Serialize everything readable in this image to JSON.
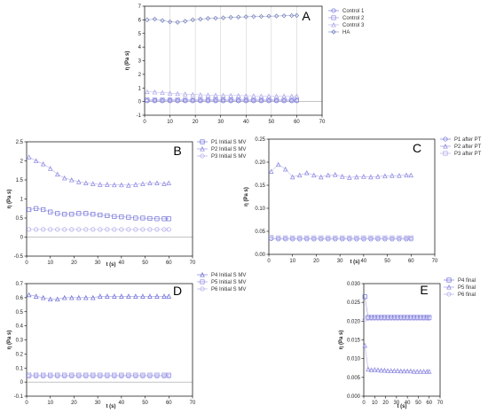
{
  "colors": {
    "series": [
      "#6a6ad6",
      "#8a86e0",
      "#a8a4e8",
      "#6f7bb8"
    ],
    "frame": "#000000",
    "grid": "#c8c8c8",
    "zero_line": "#888888"
  },
  "chart_data": [
    {
      "panel": "A",
      "type": "scatter",
      "grid": true,
      "legend": "top-right",
      "xlabel": "",
      "ylabel": "η (Pa s)",
      "xlim": [
        0,
        70
      ],
      "ylim": [
        -1,
        7
      ],
      "xticks": [
        0,
        10,
        20,
        30,
        40,
        50,
        60,
        70
      ],
      "yticks": [
        -1,
        0,
        1,
        2,
        3,
        4,
        5,
        6,
        7
      ],
      "x": [
        1,
        4,
        7,
        10,
        13,
        16,
        19,
        22,
        25,
        28,
        31,
        34,
        37,
        40,
        43,
        46,
        49,
        52,
        55,
        58,
        60
      ],
      "series": [
        {
          "name": "Control 1",
          "marker": "circle",
          "values": [
            0.05,
            0.05,
            0.05,
            0.05,
            0.05,
            0.05,
            0.05,
            0.05,
            0.05,
            0.05,
            0.05,
            0.05,
            0.05,
            0.05,
            0.05,
            0.05,
            0.05,
            0.05,
            0.05,
            0.05,
            0.05
          ]
        },
        {
          "name": "Control 2",
          "marker": "square",
          "values": [
            0.12,
            0.12,
            0.12,
            0.12,
            0.12,
            0.12,
            0.12,
            0.12,
            0.12,
            0.12,
            0.12,
            0.12,
            0.12,
            0.12,
            0.12,
            0.12,
            0.12,
            0.12,
            0.12,
            0.12,
            0.12
          ]
        },
        {
          "name": "Control 3",
          "marker": "triangle",
          "values": [
            0.72,
            0.7,
            0.66,
            0.62,
            0.58,
            0.55,
            0.52,
            0.5,
            0.48,
            0.47,
            0.46,
            0.45,
            0.44,
            0.43,
            0.42,
            0.41,
            0.41,
            0.4,
            0.4,
            0.4,
            0.4
          ]
        },
        {
          "name": "HA",
          "marker": "diamond",
          "values": [
            6.0,
            6.05,
            5.95,
            5.85,
            5.82,
            5.9,
            6.0,
            6.05,
            6.1,
            6.12,
            6.15,
            6.18,
            6.2,
            6.22,
            6.24,
            6.25,
            6.27,
            6.28,
            6.3,
            6.31,
            6.32
          ]
        }
      ]
    },
    {
      "panel": "B",
      "type": "scatter",
      "grid": false,
      "legend": "top-right",
      "xlabel": "t (s)",
      "ylabel": "η (Pa s)",
      "xlim": [
        0,
        70
      ],
      "ylim": [
        -0.5,
        2.5
      ],
      "xticks": [
        0,
        10,
        20,
        30,
        40,
        50,
        60,
        70
      ],
      "yticks": [
        -0.5,
        0.0,
        0.5,
        1.0,
        1.5,
        2.0,
        2.5
      ],
      "x": [
        1,
        4,
        7,
        10,
        13,
        16,
        19,
        22,
        25,
        28,
        31,
        34,
        37,
        40,
        43,
        46,
        49,
        52,
        55,
        58,
        60
      ],
      "series": [
        {
          "name": "P1 Initial S MV",
          "marker": "square",
          "values": [
            0.72,
            0.75,
            0.72,
            0.66,
            0.62,
            0.6,
            0.6,
            0.62,
            0.62,
            0.6,
            0.58,
            0.56,
            0.54,
            0.53,
            0.52,
            0.5,
            0.5,
            0.49,
            0.48,
            0.48,
            0.48
          ]
        },
        {
          "name": "P2 Initial S MV",
          "marker": "triangle",
          "values": [
            2.1,
            2.0,
            1.92,
            1.8,
            1.65,
            1.55,
            1.5,
            1.45,
            1.42,
            1.4,
            1.38,
            1.38,
            1.37,
            1.37,
            1.36,
            1.38,
            1.4,
            1.42,
            1.42,
            1.4,
            1.42
          ]
        },
        {
          "name": "P3 Initial S MV",
          "marker": "circle",
          "values": [
            0.2,
            0.2,
            0.2,
            0.2,
            0.2,
            0.2,
            0.2,
            0.2,
            0.2,
            0.2,
            0.2,
            0.2,
            0.2,
            0.2,
            0.2,
            0.2,
            0.2,
            0.2,
            0.2,
            0.2,
            0.2
          ]
        }
      ]
    },
    {
      "panel": "C",
      "type": "scatter",
      "grid": false,
      "legend": "top-right",
      "xlabel": "t (s)",
      "ylabel": "η (Pa s)",
      "xlim": [
        0,
        70
      ],
      "ylim": [
        0,
        0.25
      ],
      "xticks": [
        0,
        10,
        20,
        30,
        40,
        50,
        60,
        70
      ],
      "yticks": [
        0.0,
        0.05,
        0.1,
        0.15,
        0.2,
        0.25
      ],
      "ytick_labels": [
        "0.00",
        "0.05",
        "0.10",
        "0.15",
        "0.20",
        "0.25"
      ],
      "x": [
        1,
        4,
        7,
        10,
        13,
        16,
        19,
        22,
        25,
        28,
        31,
        34,
        37,
        40,
        43,
        46,
        49,
        52,
        55,
        58,
        60
      ],
      "series": [
        {
          "name": "P1 after PT",
          "marker": "circle",
          "values": [
            0.034,
            0.033,
            0.033,
            0.033,
            0.033,
            0.033,
            0.033,
            0.033,
            0.033,
            0.033,
            0.033,
            0.033,
            0.033,
            0.033,
            0.033,
            0.033,
            0.033,
            0.033,
            0.033,
            0.033,
            0.033
          ]
        },
        {
          "name": "P2 after PT",
          "marker": "triangle",
          "values": [
            0.18,
            0.195,
            0.185,
            0.168,
            0.172,
            0.177,
            0.172,
            0.168,
            0.172,
            0.173,
            0.169,
            0.167,
            0.168,
            0.169,
            0.168,
            0.169,
            0.17,
            0.171,
            0.171,
            0.172,
            0.172
          ]
        },
        {
          "name": "P3 after PT",
          "marker": "square",
          "values": [
            0.037,
            0.036,
            0.036,
            0.036,
            0.036,
            0.036,
            0.036,
            0.036,
            0.036,
            0.036,
            0.036,
            0.036,
            0.036,
            0.036,
            0.036,
            0.036,
            0.036,
            0.036,
            0.036,
            0.036,
            0.036
          ]
        }
      ]
    },
    {
      "panel": "D",
      "type": "scatter",
      "grid": false,
      "legend": "top-right",
      "xlabel": "t (s)",
      "ylabel": "η (Pa s)",
      "xlim": [
        0,
        70
      ],
      "ylim": [
        -0.1,
        0.7
      ],
      "xticks": [
        0,
        10,
        20,
        30,
        40,
        50,
        60,
        70
      ],
      "yticks": [
        -0.1,
        0.0,
        0.1,
        0.2,
        0.3,
        0.4,
        0.5,
        0.6,
        0.7
      ],
      "x": [
        1,
        4,
        7,
        10,
        13,
        16,
        19,
        22,
        25,
        28,
        31,
        34,
        37,
        40,
        43,
        46,
        49,
        52,
        55,
        58,
        60
      ],
      "series": [
        {
          "name": "P4 Initial S MV",
          "marker": "triangle",
          "values": [
            0.62,
            0.61,
            0.6,
            0.59,
            0.59,
            0.6,
            0.6,
            0.6,
            0.6,
            0.6,
            0.61,
            0.61,
            0.61,
            0.61,
            0.61,
            0.61,
            0.61,
            0.61,
            0.61,
            0.61,
            0.61
          ]
        },
        {
          "name": "P5 Initial S MV",
          "marker": "square",
          "values": [
            0.05,
            0.05,
            0.05,
            0.05,
            0.05,
            0.05,
            0.05,
            0.05,
            0.05,
            0.05,
            0.05,
            0.05,
            0.05,
            0.05,
            0.05,
            0.05,
            0.05,
            0.05,
            0.05,
            0.05,
            0.05
          ]
        },
        {
          "name": "P6 Initial S MV",
          "marker": "circle",
          "values": [
            0.04,
            0.04,
            0.04,
            0.04,
            0.04,
            0.04,
            0.04,
            0.04,
            0.04,
            0.04,
            0.04,
            0.04,
            0.04,
            0.04,
            0.04,
            0.04,
            0.04,
            0.04,
            0.04,
            0.04,
            0.04
          ]
        }
      ]
    },
    {
      "panel": "E",
      "type": "scatter",
      "grid": false,
      "legend": "top-right",
      "xlabel": "t (s)",
      "ylabel": "η (Pa s)",
      "xlim": [
        0,
        70
      ],
      "ylim": [
        0,
        0.03
      ],
      "xticks": [
        0,
        10,
        20,
        30,
        40,
        50,
        60,
        70
      ],
      "yticks": [
        0.0,
        0.005,
        0.01,
        0.015,
        0.02,
        0.025,
        0.03
      ],
      "ytick_labels": [
        "0.000",
        "0.005",
        "0.010",
        "0.015",
        "0.020",
        "0.025",
        "0.030"
      ],
      "x": [
        1,
        4,
        7,
        10,
        13,
        16,
        19,
        22,
        25,
        28,
        31,
        34,
        37,
        40,
        43,
        46,
        49,
        52,
        55,
        58,
        60
      ],
      "series": [
        {
          "name": "P4 final",
          "marker": "square",
          "values": [
            0.0265,
            0.021,
            0.021,
            0.021,
            0.021,
            0.021,
            0.021,
            0.021,
            0.021,
            0.021,
            0.021,
            0.021,
            0.021,
            0.021,
            0.021,
            0.021,
            0.021,
            0.021,
            0.021,
            0.021,
            0.021
          ]
        },
        {
          "name": "P5 final",
          "marker": "triangle",
          "values": [
            0.0135,
            0.0072,
            0.007,
            0.0071,
            0.007,
            0.0069,
            0.0069,
            0.0068,
            0.0068,
            0.0068,
            0.0068,
            0.0067,
            0.0067,
            0.0067,
            0.0067,
            0.0066,
            0.0066,
            0.0066,
            0.0066,
            0.0066,
            0.0066
          ]
        },
        {
          "name": "P6 final",
          "marker": "circle",
          "values": [
            0.0205,
            0.0207,
            0.0207,
            0.0207,
            0.0207,
            0.0207,
            0.0207,
            0.0207,
            0.0207,
            0.0207,
            0.0207,
            0.0207,
            0.0207,
            0.0207,
            0.0207,
            0.0207,
            0.0207,
            0.0207,
            0.0207,
            0.0207,
            0.0207
          ]
        }
      ]
    }
  ]
}
